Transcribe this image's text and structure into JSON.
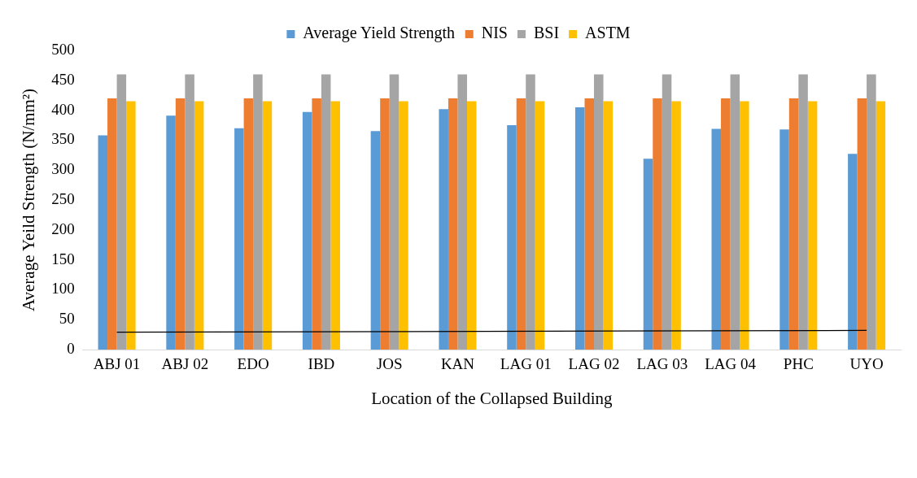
{
  "chart_data": {
    "type": "bar",
    "xlabel": "Location of the Collapsed Building",
    "ylabel": "Average Yeild Strength (N/mm²)",
    "categories": [
      "ABJ 01",
      "ABJ 02",
      "EDO",
      "IBD",
      "JOS",
      "KAN",
      "LAG 01",
      "LAG 02",
      "LAG 03",
      "LAG 04",
      "PHC",
      "UYO"
    ],
    "series": [
      {
        "name": "Average Yield Strength",
        "color": "#5b9bd5",
        "values": [
          358,
          391,
          370,
          397,
          365,
          402,
          375,
          405,
          319,
          369,
          368,
          327
        ]
      },
      {
        "name": "NIS",
        "color": "#ed7d31",
        "values": [
          420,
          420,
          420,
          420,
          420,
          420,
          420,
          420,
          420,
          420,
          420,
          420
        ]
      },
      {
        "name": "BSI",
        "color": "#a5a5a5",
        "values": [
          460,
          460,
          460,
          460,
          460,
          460,
          460,
          460,
          460,
          460,
          460,
          460
        ]
      },
      {
        "name": "ASTM",
        "color": "#ffc000",
        "values": [
          415,
          415,
          415,
          415,
          415,
          415,
          415,
          415,
          415,
          415,
          415,
          415
        ]
      },
      {
        "type": "line",
        "color": "#000000",
        "x": [
          "ABJ 01",
          "UYO"
        ],
        "values": [
          29,
          32
        ]
      }
    ],
    "ylim": [
      0,
      500
    ],
    "yticks": [
      0,
      50,
      100,
      150,
      200,
      250,
      300,
      350,
      400,
      450,
      500
    ],
    "grid": false,
    "legend": "top"
  }
}
